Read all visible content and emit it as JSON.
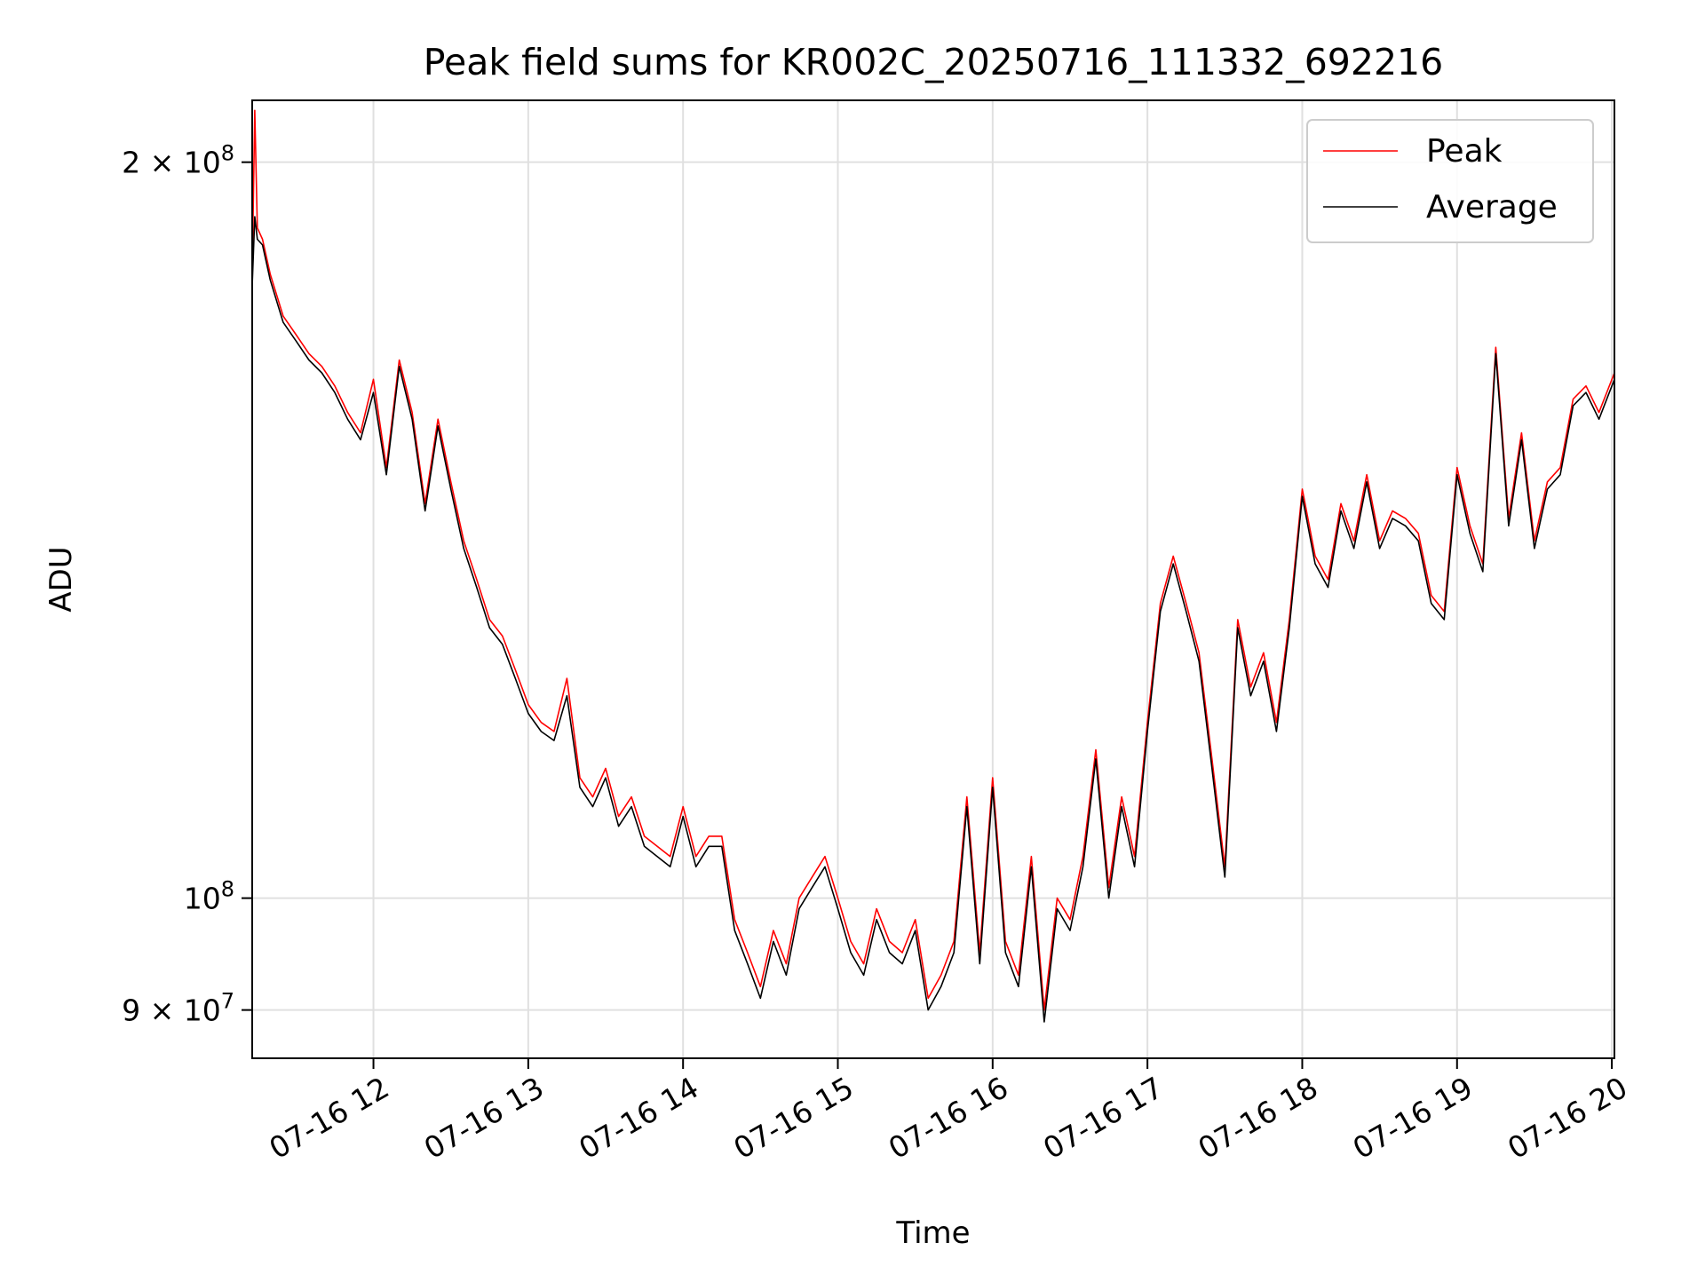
{
  "chart_data": {
    "type": "line",
    "title": "Peak field sums for KR002C_20250716_111332_692216",
    "xlabel": "Time",
    "ylabel": "ADU",
    "yscale": "log",
    "grid": true,
    "legend_position": "top-right",
    "xlim": [
      "2025-07-16 11:13",
      "2025-07-16 20:01"
    ],
    "ylim": [
      86000000,
      212000000
    ],
    "x_ticks": [
      {
        "value": "2025-07-16 12:00",
        "label": "07-16 12"
      },
      {
        "value": "2025-07-16 13:00",
        "label": "07-16 13"
      },
      {
        "value": "2025-07-16 14:00",
        "label": "07-16 14"
      },
      {
        "value": "2025-07-16 15:00",
        "label": "07-16 15"
      },
      {
        "value": "2025-07-16 16:00",
        "label": "07-16 16"
      },
      {
        "value": "2025-07-16 17:00",
        "label": "07-16 17"
      },
      {
        "value": "2025-07-16 18:00",
        "label": "07-16 18"
      },
      {
        "value": "2025-07-16 19:00",
        "label": "07-16 19"
      },
      {
        "value": "2025-07-16 20:00",
        "label": "07-16 20"
      }
    ],
    "y_ticks": [
      {
        "value": 90000000,
        "base": "9",
        "mult": "×",
        "exp_base": "10",
        "exp": "7"
      },
      {
        "value": 100000000,
        "base": "",
        "mult": "",
        "exp_base": "10",
        "exp": "8"
      },
      {
        "value": 200000000,
        "base": "2",
        "mult": "×",
        "exp_base": "10",
        "exp": "8"
      }
    ],
    "series": [
      {
        "name": "Peak",
        "color": "#ff0000",
        "x": [
          "2025-07-16 11:13",
          "2025-07-16 11:14",
          "2025-07-16 11:15",
          "2025-07-16 11:17",
          "2025-07-16 11:20",
          "2025-07-16 11:25",
          "2025-07-16 11:30",
          "2025-07-16 11:35",
          "2025-07-16 11:40",
          "2025-07-16 11:45",
          "2025-07-16 11:50",
          "2025-07-16 11:55",
          "2025-07-16 12:00",
          "2025-07-16 12:05",
          "2025-07-16 12:10",
          "2025-07-16 12:15",
          "2025-07-16 12:20",
          "2025-07-16 12:25",
          "2025-07-16 12:30",
          "2025-07-16 12:35",
          "2025-07-16 12:40",
          "2025-07-16 12:45",
          "2025-07-16 12:50",
          "2025-07-16 12:55",
          "2025-07-16 13:00",
          "2025-07-16 13:05",
          "2025-07-16 13:10",
          "2025-07-16 13:15",
          "2025-07-16 13:20",
          "2025-07-16 13:25",
          "2025-07-16 13:30",
          "2025-07-16 13:35",
          "2025-07-16 13:40",
          "2025-07-16 13:45",
          "2025-07-16 13:50",
          "2025-07-16 13:55",
          "2025-07-16 14:00",
          "2025-07-16 14:05",
          "2025-07-16 14:10",
          "2025-07-16 14:15",
          "2025-07-16 14:20",
          "2025-07-16 14:25",
          "2025-07-16 14:30",
          "2025-07-16 14:35",
          "2025-07-16 14:40",
          "2025-07-16 14:45",
          "2025-07-16 14:50",
          "2025-07-16 14:55",
          "2025-07-16 15:00",
          "2025-07-16 15:05",
          "2025-07-16 15:10",
          "2025-07-16 15:15",
          "2025-07-16 15:20",
          "2025-07-16 15:25",
          "2025-07-16 15:30",
          "2025-07-16 15:35",
          "2025-07-16 15:40",
          "2025-07-16 15:45",
          "2025-07-16 15:50",
          "2025-07-16 15:55",
          "2025-07-16 16:00",
          "2025-07-16 16:05",
          "2025-07-16 16:10",
          "2025-07-16 16:15",
          "2025-07-16 16:20",
          "2025-07-16 16:25",
          "2025-07-16 16:30",
          "2025-07-16 16:35",
          "2025-07-16 16:40",
          "2025-07-16 16:45",
          "2025-07-16 16:50",
          "2025-07-16 16:55",
          "2025-07-16 17:00",
          "2025-07-16 17:05",
          "2025-07-16 17:10",
          "2025-07-16 17:15",
          "2025-07-16 17:20",
          "2025-07-16 17:25",
          "2025-07-16 17:30",
          "2025-07-16 17:35",
          "2025-07-16 17:40",
          "2025-07-16 17:45",
          "2025-07-16 17:50",
          "2025-07-16 17:55",
          "2025-07-16 18:00",
          "2025-07-16 18:05",
          "2025-07-16 18:10",
          "2025-07-16 18:15",
          "2025-07-16 18:20",
          "2025-07-16 18:25",
          "2025-07-16 18:30",
          "2025-07-16 18:35",
          "2025-07-16 18:40",
          "2025-07-16 18:45",
          "2025-07-16 18:50",
          "2025-07-16 18:55",
          "2025-07-16 19:00",
          "2025-07-16 19:05",
          "2025-07-16 19:10",
          "2025-07-16 19:15",
          "2025-07-16 19:20",
          "2025-07-16 19:25",
          "2025-07-16 19:30",
          "2025-07-16 19:35",
          "2025-07-16 19:40",
          "2025-07-16 19:45",
          "2025-07-16 19:50",
          "2025-07-16 19:55",
          "2025-07-16 20:01"
        ],
        "values": [
          180000000,
          210000000,
          188000000,
          186000000,
          180000000,
          173000000,
          170000000,
          167000000,
          165000000,
          162000000,
          158000000,
          155000000,
          163000000,
          150000000,
          166000000,
          158000000,
          145000000,
          157000000,
          148000000,
          140000000,
          135000000,
          130000000,
          128000000,
          124000000,
          120000000,
          118000000,
          117000000,
          123000000,
          112000000,
          110000000,
          113000000,
          108000000,
          110000000,
          106000000,
          105000000,
          104000000,
          109000000,
          104000000,
          106000000,
          106000000,
          98000000,
          95000000,
          92000000,
          97000000,
          94000000,
          100000000,
          102000000,
          104000000,
          100000000,
          96000000,
          94000000,
          99000000,
          96000000,
          95000000,
          98000000,
          91000000,
          93000000,
          96000000,
          110000000,
          95000000,
          112000000,
          96000000,
          93000000,
          104000000,
          90000000,
          100000000,
          98000000,
          104000000,
          115000000,
          101000000,
          110000000,
          104000000,
          118000000,
          132000000,
          138000000,
          132000000,
          126000000,
          114000000,
          103000000,
          130000000,
          122000000,
          126000000,
          118000000,
          130000000,
          147000000,
          138000000,
          135000000,
          145000000,
          140000000,
          149000000,
          140000000,
          144000000,
          143000000,
          141000000,
          133000000,
          131000000,
          150000000,
          142000000,
          137000000,
          168000000,
          143000000,
          155000000,
          140000000,
          148000000,
          150000000,
          160000000,
          162000000,
          158000000,
          164000000
        ]
      },
      {
        "name": "Average",
        "color": "#000000",
        "x": [
          "2025-07-16 11:13",
          "2025-07-16 11:14",
          "2025-07-16 11:15",
          "2025-07-16 11:17",
          "2025-07-16 11:20",
          "2025-07-16 11:25",
          "2025-07-16 11:30",
          "2025-07-16 11:35",
          "2025-07-16 11:40",
          "2025-07-16 11:45",
          "2025-07-16 11:50",
          "2025-07-16 11:55",
          "2025-07-16 12:00",
          "2025-07-16 12:05",
          "2025-07-16 12:10",
          "2025-07-16 12:15",
          "2025-07-16 12:20",
          "2025-07-16 12:25",
          "2025-07-16 12:30",
          "2025-07-16 12:35",
          "2025-07-16 12:40",
          "2025-07-16 12:45",
          "2025-07-16 12:50",
          "2025-07-16 12:55",
          "2025-07-16 13:00",
          "2025-07-16 13:05",
          "2025-07-16 13:10",
          "2025-07-16 13:15",
          "2025-07-16 13:20",
          "2025-07-16 13:25",
          "2025-07-16 13:30",
          "2025-07-16 13:35",
          "2025-07-16 13:40",
          "2025-07-16 13:45",
          "2025-07-16 13:50",
          "2025-07-16 13:55",
          "2025-07-16 14:00",
          "2025-07-16 14:05",
          "2025-07-16 14:10",
          "2025-07-16 14:15",
          "2025-07-16 14:20",
          "2025-07-16 14:25",
          "2025-07-16 14:30",
          "2025-07-16 14:35",
          "2025-07-16 14:40",
          "2025-07-16 14:45",
          "2025-07-16 14:50",
          "2025-07-16 14:55",
          "2025-07-16 15:00",
          "2025-07-16 15:05",
          "2025-07-16 15:10",
          "2025-07-16 15:15",
          "2025-07-16 15:20",
          "2025-07-16 15:25",
          "2025-07-16 15:30",
          "2025-07-16 15:35",
          "2025-07-16 15:40",
          "2025-07-16 15:45",
          "2025-07-16 15:50",
          "2025-07-16 15:55",
          "2025-07-16 16:00",
          "2025-07-16 16:05",
          "2025-07-16 16:10",
          "2025-07-16 16:15",
          "2025-07-16 16:20",
          "2025-07-16 16:25",
          "2025-07-16 16:30",
          "2025-07-16 16:35",
          "2025-07-16 16:40",
          "2025-07-16 16:45",
          "2025-07-16 16:50",
          "2025-07-16 16:55",
          "2025-07-16 17:00",
          "2025-07-16 17:05",
          "2025-07-16 17:10",
          "2025-07-16 17:15",
          "2025-07-16 17:20",
          "2025-07-16 17:25",
          "2025-07-16 17:30",
          "2025-07-16 17:35",
          "2025-07-16 17:40",
          "2025-07-16 17:45",
          "2025-07-16 17:50",
          "2025-07-16 17:55",
          "2025-07-16 18:00",
          "2025-07-16 18:05",
          "2025-07-16 18:10",
          "2025-07-16 18:15",
          "2025-07-16 18:20",
          "2025-07-16 18:25",
          "2025-07-16 18:30",
          "2025-07-16 18:35",
          "2025-07-16 18:40",
          "2025-07-16 18:45",
          "2025-07-16 18:50",
          "2025-07-16 18:55",
          "2025-07-16 19:00",
          "2025-07-16 19:05",
          "2025-07-16 19:10",
          "2025-07-16 19:15",
          "2025-07-16 19:20",
          "2025-07-16 19:25",
          "2025-07-16 19:30",
          "2025-07-16 19:35",
          "2025-07-16 19:40",
          "2025-07-16 19:45",
          "2025-07-16 19:50",
          "2025-07-16 19:55",
          "2025-07-16 20:01"
        ],
        "values": [
          178000000,
          190000000,
          186000000,
          185000000,
          179000000,
          172000000,
          169000000,
          166000000,
          164000000,
          161000000,
          157000000,
          154000000,
          161000000,
          149000000,
          165000000,
          157000000,
          144000000,
          156000000,
          147000000,
          139000000,
          134000000,
          129000000,
          127000000,
          123000000,
          119000000,
          117000000,
          116000000,
          121000000,
          111000000,
          109000000,
          112000000,
          107000000,
          109000000,
          105000000,
          104000000,
          103000000,
          108000000,
          103000000,
          105000000,
          105000000,
          97000000,
          94000000,
          91000000,
          96000000,
          93000000,
          99000000,
          101000000,
          103000000,
          99000000,
          95000000,
          93000000,
          98000000,
          95000000,
          94000000,
          97000000,
          90000000,
          92000000,
          95000000,
          109000000,
          94000000,
          111000000,
          95000000,
          92000000,
          103000000,
          89000000,
          99000000,
          97000000,
          103000000,
          114000000,
          100000000,
          109000000,
          103000000,
          117000000,
          131000000,
          137000000,
          131000000,
          125000000,
          113000000,
          102000000,
          129000000,
          121000000,
          125000000,
          117000000,
          129000000,
          146000000,
          137000000,
          134000000,
          144000000,
          139000000,
          148000000,
          139000000,
          143000000,
          142000000,
          140000000,
          132000000,
          130000000,
          149000000,
          141000000,
          136000000,
          167000000,
          142000000,
          154000000,
          139000000,
          147000000,
          149000000,
          159000000,
          161000000,
          157000000,
          163000000
        ]
      }
    ]
  }
}
